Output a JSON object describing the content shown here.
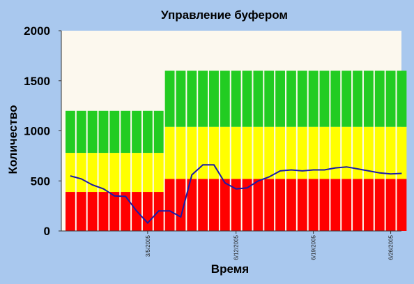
{
  "chart_data": {
    "type": "bar",
    "title": "Управление буфером",
    "xlabel": "Время",
    "ylabel": "Количество",
    "ylim": [
      0,
      2000
    ],
    "yticks": [
      0,
      500,
      1000,
      1500,
      2000
    ],
    "x_tick_labels": [
      "3/5/2005",
      "6/12/2005",
      "6/19/2005",
      "6/26/2005"
    ],
    "x_tick_positions": [
      7,
      15,
      22,
      29
    ],
    "grid": false,
    "legend": "none",
    "colors": {
      "red": "#ff0000",
      "yellow": "#ffff00",
      "green": "#22cc22",
      "line": "#1a1aa8",
      "plot_bg": "#fcf8ee",
      "bar_border": "#ffffff"
    },
    "bar_count": 31,
    "zones": {
      "red_top": [
        390,
        390,
        390,
        390,
        390,
        390,
        390,
        390,
        390,
        520,
        520,
        520,
        520,
        520,
        520,
        520,
        520,
        520,
        520,
        520,
        520,
        520,
        520,
        520,
        520,
        520,
        520,
        520,
        520,
        520,
        520
      ],
      "yellow_top": [
        780,
        780,
        780,
        780,
        780,
        780,
        780,
        780,
        780,
        1040,
        1040,
        1040,
        1040,
        1040,
        1040,
        1040,
        1040,
        1040,
        1040,
        1040,
        1040,
        1040,
        1040,
        1040,
        1040,
        1040,
        1040,
        1040,
        1040,
        1040,
        1040
      ],
      "green_top": [
        1200,
        1200,
        1200,
        1200,
        1200,
        1200,
        1200,
        1200,
        1200,
        1600,
        1600,
        1600,
        1600,
        1600,
        1600,
        1600,
        1600,
        1600,
        1600,
        1600,
        1600,
        1600,
        1600,
        1600,
        1600,
        1600,
        1600,
        1600,
        1600,
        1600,
        1600
      ]
    },
    "line_series": {
      "x": [
        0,
        1,
        2,
        3,
        4,
        5,
        6,
        7,
        8,
        9,
        10,
        11,
        12,
        13,
        14,
        15,
        16,
        17,
        18,
        19,
        20,
        21,
        22,
        23,
        24,
        25,
        26,
        27,
        28,
        29,
        30
      ],
      "values": [
        550,
        520,
        460,
        420,
        350,
        345,
        200,
        80,
        200,
        200,
        140,
        560,
        660,
        660,
        480,
        420,
        430,
        500,
        540,
        600,
        610,
        600,
        610,
        610,
        630,
        640,
        620,
        600,
        580,
        570,
        575
      ]
    }
  }
}
